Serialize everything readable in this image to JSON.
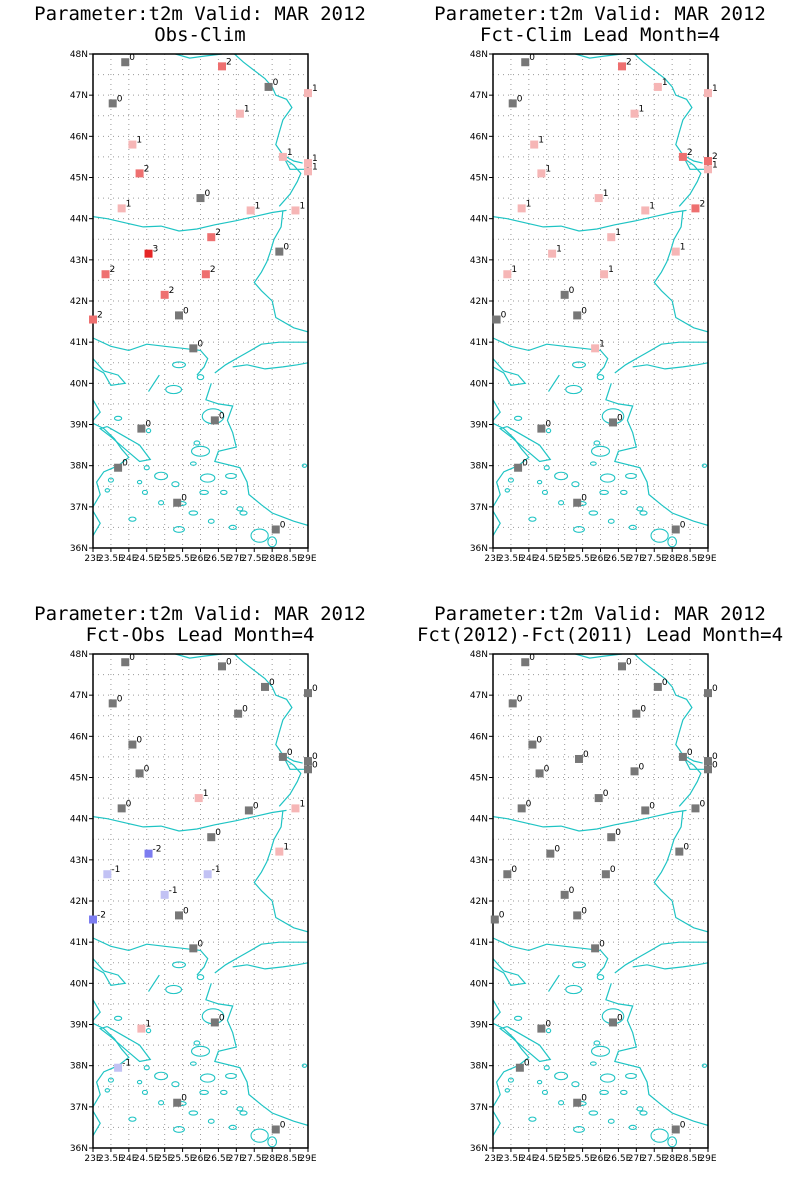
{
  "colors": {
    "coast": "#1fc4c4",
    "grid": "#9a9a9a",
    "zero": "#777777",
    "warm1": "#f6b6b6",
    "warm2": "#ee7070",
    "warm3": "#e52525",
    "cool1": "#c2c2f4",
    "cool2": "#7c7cf0"
  },
  "axes": {
    "lon_labels": [
      "23E",
      "23.5E",
      "24E",
      "24.5E",
      "25E",
      "25.5E",
      "26E",
      "26.5E",
      "27E",
      "27.5E",
      "28E",
      "28.5E",
      "29E"
    ],
    "lat_labels": [
      "36N",
      "37N",
      "38N",
      "39N",
      "40N",
      "41N",
      "42N",
      "43N",
      "44N",
      "45N",
      "46N",
      "47N",
      "48N"
    ],
    "lon_range": [
      23,
      29
    ],
    "lat_range": [
      36,
      48
    ]
  },
  "panels": [
    {
      "title": "Parameter:t2m Valid: MAR 2012",
      "subtitle": "Obs-Clim",
      "stations": [
        {
          "lon": 23.9,
          "lat": 47.8,
          "v": 0
        },
        {
          "lon": 26.6,
          "lat": 47.7,
          "v": 2
        },
        {
          "lon": 27.9,
          "lat": 47.2,
          "v": 0
        },
        {
          "lon": 29.0,
          "lat": 47.05,
          "v": 1
        },
        {
          "lon": 23.55,
          "lat": 46.8,
          "v": 0
        },
        {
          "lon": 27.1,
          "lat": 46.55,
          "v": 1
        },
        {
          "lon": 24.1,
          "lat": 45.8,
          "v": 1
        },
        {
          "lon": 28.3,
          "lat": 45.5,
          "v": 1
        },
        {
          "lon": 29.0,
          "lat": 45.35,
          "v": 1
        },
        {
          "lon": 24.3,
          "lat": 45.1,
          "v": 2
        },
        {
          "lon": 29.0,
          "lat": 45.15,
          "v": 1
        },
        {
          "lon": 26.0,
          "lat": 44.5,
          "v": 0
        },
        {
          "lon": 23.8,
          "lat": 44.25,
          "v": 1
        },
        {
          "lon": 27.4,
          "lat": 44.2,
          "v": 1
        },
        {
          "lon": 28.65,
          "lat": 44.2,
          "v": 1
        },
        {
          "lon": 26.3,
          "lat": 43.55,
          "v": 2
        },
        {
          "lon": 28.2,
          "lat": 43.2,
          "v": 0
        },
        {
          "lon": 24.55,
          "lat": 43.15,
          "v": 3
        },
        {
          "lon": 23.35,
          "lat": 42.65,
          "v": 2
        },
        {
          "lon": 26.15,
          "lat": 42.65,
          "v": 2
        },
        {
          "lon": 25.0,
          "lat": 42.15,
          "v": 2
        },
        {
          "lon": 23.0,
          "lat": 41.55,
          "v": 2
        },
        {
          "lon": 25.4,
          "lat": 41.65,
          "v": 0
        },
        {
          "lon": 25.8,
          "lat": 40.85,
          "v": 0
        },
        {
          "lon": 26.4,
          "lat": 39.1,
          "v": 0
        },
        {
          "lon": 24.35,
          "lat": 38.9,
          "v": 0
        },
        {
          "lon": 23.7,
          "lat": 37.95,
          "v": 0
        },
        {
          "lon": 25.35,
          "lat": 37.1,
          "v": 0
        },
        {
          "lon": 28.1,
          "lat": 36.45,
          "v": 0
        }
      ]
    },
    {
      "title": "Parameter:t2m Valid: MAR 2012",
      "subtitle": "Fct-Clim Lead Month=4",
      "stations": [
        {
          "lon": 23.9,
          "lat": 47.8,
          "v": 0
        },
        {
          "lon": 26.6,
          "lat": 47.7,
          "v": 2
        },
        {
          "lon": 27.6,
          "lat": 47.2,
          "v": 1
        },
        {
          "lon": 29.0,
          "lat": 47.05,
          "v": 1
        },
        {
          "lon": 23.55,
          "lat": 46.8,
          "v": 0
        },
        {
          "lon": 26.95,
          "lat": 46.55,
          "v": 1
        },
        {
          "lon": 24.15,
          "lat": 45.8,
          "v": 1
        },
        {
          "lon": 28.3,
          "lat": 45.5,
          "v": 2
        },
        {
          "lon": 29.0,
          "lat": 45.4,
          "v": 2
        },
        {
          "lon": 24.35,
          "lat": 45.1,
          "v": 1
        },
        {
          "lon": 29.0,
          "lat": 45.2,
          "v": 1
        },
        {
          "lon": 25.95,
          "lat": 44.5,
          "v": 1
        },
        {
          "lon": 23.8,
          "lat": 44.25,
          "v": 1
        },
        {
          "lon": 27.25,
          "lat": 44.2,
          "v": 1
        },
        {
          "lon": 28.65,
          "lat": 44.25,
          "v": 2
        },
        {
          "lon": 26.3,
          "lat": 43.55,
          "v": 1
        },
        {
          "lon": 28.1,
          "lat": 43.2,
          "v": 1
        },
        {
          "lon": 24.65,
          "lat": 43.15,
          "v": 1
        },
        {
          "lon": 23.4,
          "lat": 42.65,
          "v": 1
        },
        {
          "lon": 26.1,
          "lat": 42.65,
          "v": 1
        },
        {
          "lon": 25.0,
          "lat": 42.15,
          "v": 0
        },
        {
          "lon": 23.1,
          "lat": 41.55,
          "v": 0
        },
        {
          "lon": 25.35,
          "lat": 41.65,
          "v": 0
        },
        {
          "lon": 25.85,
          "lat": 40.85,
          "v": 1
        },
        {
          "lon": 26.35,
          "lat": 39.05,
          "v": 0
        },
        {
          "lon": 24.35,
          "lat": 38.9,
          "v": 0
        },
        {
          "lon": 23.7,
          "lat": 37.95,
          "v": 0
        },
        {
          "lon": 25.35,
          "lat": 37.1,
          "v": 0
        },
        {
          "lon": 28.1,
          "lat": 36.45,
          "v": 0
        }
      ]
    },
    {
      "title": "Parameter:t2m Valid: MAR 2012",
      "subtitle": "Fct-Obs Lead Month=4",
      "stations": [
        {
          "lon": 23.9,
          "lat": 47.8,
          "v": 0
        },
        {
          "lon": 26.6,
          "lat": 47.7,
          "v": 0
        },
        {
          "lon": 27.8,
          "lat": 47.2,
          "v": 0
        },
        {
          "lon": 29.0,
          "lat": 47.05,
          "v": 0
        },
        {
          "lon": 23.55,
          "lat": 46.8,
          "v": 0
        },
        {
          "lon": 27.05,
          "lat": 46.55,
          "v": 0
        },
        {
          "lon": 24.1,
          "lat": 45.8,
          "v": 0
        },
        {
          "lon": 28.3,
          "lat": 45.5,
          "v": 0
        },
        {
          "lon": 29.0,
          "lat": 45.4,
          "v": 0
        },
        {
          "lon": 24.3,
          "lat": 45.1,
          "v": 0
        },
        {
          "lon": 29.0,
          "lat": 45.2,
          "v": 0
        },
        {
          "lon": 25.95,
          "lat": 44.5,
          "v": 1
        },
        {
          "lon": 23.8,
          "lat": 44.25,
          "v": 0
        },
        {
          "lon": 27.35,
          "lat": 44.2,
          "v": 0
        },
        {
          "lon": 28.65,
          "lat": 44.25,
          "v": 1
        },
        {
          "lon": 26.3,
          "lat": 43.55,
          "v": 0
        },
        {
          "lon": 28.2,
          "lat": 43.2,
          "v": 1
        },
        {
          "lon": 24.55,
          "lat": 43.15,
          "v": -2
        },
        {
          "lon": 23.4,
          "lat": 42.65,
          "v": -1
        },
        {
          "lon": 26.2,
          "lat": 42.65,
          "v": -1
        },
        {
          "lon": 25.0,
          "lat": 42.15,
          "v": -1
        },
        {
          "lon": 23.0,
          "lat": 41.55,
          "v": -2
        },
        {
          "lon": 25.4,
          "lat": 41.65,
          "v": 0
        },
        {
          "lon": 25.8,
          "lat": 40.85,
          "v": 0
        },
        {
          "lon": 26.4,
          "lat": 39.05,
          "v": 0
        },
        {
          "lon": 24.35,
          "lat": 38.9,
          "v": 1
        },
        {
          "lon": 23.7,
          "lat": 37.95,
          "v": -1
        },
        {
          "lon": 25.35,
          "lat": 37.1,
          "v": 0
        },
        {
          "lon": 28.1,
          "lat": 36.45,
          "v": 0
        }
      ]
    },
    {
      "title": "Parameter:t2m Valid: MAR 2012",
      "subtitle": "Fct(2012)-Fct(2011) Lead Month=4",
      "stations": [
        {
          "lon": 23.9,
          "lat": 47.8,
          "v": 0
        },
        {
          "lon": 26.6,
          "lat": 47.7,
          "v": 0
        },
        {
          "lon": 27.6,
          "lat": 47.2,
          "v": 0
        },
        {
          "lon": 29.0,
          "lat": 47.05,
          "v": 0
        },
        {
          "lon": 23.55,
          "lat": 46.8,
          "v": 0
        },
        {
          "lon": 27.0,
          "lat": 46.55,
          "v": 0
        },
        {
          "lon": 24.1,
          "lat": 45.8,
          "v": 0
        },
        {
          "lon": 28.3,
          "lat": 45.5,
          "v": 0
        },
        {
          "lon": 29.0,
          "lat": 45.4,
          "v": 0
        },
        {
          "lon": 24.3,
          "lat": 45.1,
          "v": 0
        },
        {
          "lon": 25.4,
          "lat": 45.45,
          "v": 0
        },
        {
          "lon": 29.0,
          "lat": 45.2,
          "v": 0
        },
        {
          "lon": 26.95,
          "lat": 45.15,
          "v": 0
        },
        {
          "lon": 25.95,
          "lat": 44.5,
          "v": 0
        },
        {
          "lon": 23.8,
          "lat": 44.25,
          "v": 0
        },
        {
          "lon": 27.25,
          "lat": 44.2,
          "v": 0
        },
        {
          "lon": 28.65,
          "lat": 44.25,
          "v": 0
        },
        {
          "lon": 26.3,
          "lat": 43.55,
          "v": 0
        },
        {
          "lon": 28.2,
          "lat": 43.2,
          "v": 0
        },
        {
          "lon": 24.6,
          "lat": 43.15,
          "v": 0
        },
        {
          "lon": 23.4,
          "lat": 42.65,
          "v": 0
        },
        {
          "lon": 26.15,
          "lat": 42.65,
          "v": 0
        },
        {
          "lon": 25.0,
          "lat": 42.15,
          "v": 0
        },
        {
          "lon": 23.05,
          "lat": 41.55,
          "v": 0
        },
        {
          "lon": 25.35,
          "lat": 41.65,
          "v": 0
        },
        {
          "lon": 25.85,
          "lat": 40.85,
          "v": 0
        },
        {
          "lon": 26.35,
          "lat": 39.05,
          "v": 0
        },
        {
          "lon": 24.35,
          "lat": 38.9,
          "v": 0
        },
        {
          "lon": 23.75,
          "lat": 37.95,
          "v": 0
        },
        {
          "lon": 25.35,
          "lat": 37.1,
          "v": 0
        },
        {
          "lon": 28.1,
          "lat": 36.45,
          "v": 0
        }
      ]
    }
  ]
}
